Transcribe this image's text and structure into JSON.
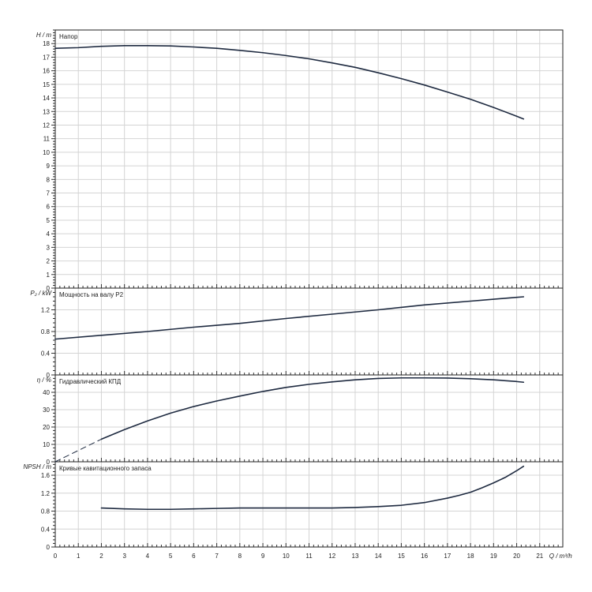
{
  "chart_data": {
    "type": "line",
    "x_axis": {
      "label": "Q / m³/h",
      "range": [
        0,
        22
      ],
      "ticks": [
        0,
        1,
        2,
        3,
        4,
        5,
        6,
        7,
        8,
        9,
        10,
        11,
        12,
        13,
        14,
        15,
        16,
        17,
        18,
        19,
        20,
        21
      ]
    },
    "grid": true,
    "panels": [
      {
        "id": "head",
        "ylabel": "H / m",
        "title": "Напор",
        "ylim": [
          0,
          19
        ],
        "yticks": [
          0,
          1,
          2,
          3,
          4,
          5,
          6,
          7,
          8,
          9,
          10,
          11,
          12,
          13,
          14,
          15,
          16,
          17,
          18
        ],
        "ytick_labels": [
          "0",
          "1",
          "2",
          "3",
          "4",
          "5",
          "6",
          "7",
          "8",
          "9",
          "10",
          "11",
          "12",
          "13",
          "14",
          "15",
          "16",
          "17",
          "18"
        ],
        "series": [
          {
            "x": [
              0,
              1,
              2,
              3,
              4,
              5,
              6,
              7,
              8,
              9,
              10,
              11,
              12,
              13,
              14,
              15,
              16,
              17,
              18,
              19,
              20,
              20.3
            ],
            "y": [
              17.65,
              17.7,
              17.8,
              17.85,
              17.85,
              17.83,
              17.75,
              17.65,
              17.5,
              17.33,
              17.12,
              16.88,
              16.58,
              16.25,
              15.85,
              15.42,
              14.95,
              14.43,
              13.9,
              13.3,
              12.65,
              12.45
            ]
          }
        ]
      },
      {
        "id": "power",
        "ylabel": "P₂ / kW",
        "title": "Мощность на валу P2",
        "ylim": [
          0,
          1.6
        ],
        "yticks": [
          0,
          0.4,
          0.8,
          1.2
        ],
        "ytick_labels": [
          "0",
          "0.4",
          "0.8",
          "1.2"
        ],
        "series": [
          {
            "x": [
              0,
              2,
              4,
              6,
              8,
              10,
              12,
              14,
              16,
              18,
              20,
              20.3
            ],
            "y": [
              0.66,
              0.73,
              0.8,
              0.88,
              0.95,
              1.04,
              1.12,
              1.2,
              1.29,
              1.36,
              1.43,
              1.44
            ]
          }
        ]
      },
      {
        "id": "efficiency",
        "ylabel": "η / %",
        "title": "Гидравлический КПД",
        "ylim": [
          0,
          50
        ],
        "yticks": [
          0,
          10,
          20,
          30,
          40
        ],
        "ytick_labels": [
          "0",
          "10",
          "20",
          "30",
          "40"
        ],
        "series": [
          {
            "dashed": true,
            "x": [
              0,
              2
            ],
            "y": [
              0,
              13
            ]
          },
          {
            "x": [
              2,
              3,
              4,
              5,
              6,
              7,
              8,
              9,
              10,
              11,
              12,
              13,
              14,
              15,
              16,
              17,
              18,
              19,
              20,
              20.3
            ],
            "y": [
              13,
              18.5,
              23.5,
              28,
              31.8,
              35,
              37.8,
              40.5,
              42.8,
              44.6,
              46,
              47.2,
              48,
              48.3,
              48.3,
              48.2,
              47.8,
              47.2,
              46.2,
              45.8
            ]
          }
        ]
      },
      {
        "id": "npsh",
        "ylabel": "NPSH / m",
        "title": "Кривые кавитационного запаса",
        "ylim": [
          0,
          1.9
        ],
        "yticks": [
          0,
          0.4,
          0.8,
          1.2,
          1.6
        ],
        "ytick_labels": [
          "0",
          "0.4",
          "0.8",
          "1.2",
          "1.6"
        ],
        "series": [
          {
            "x": [
              2,
              3,
              4,
              5,
              6,
              7,
              8,
              9,
              10,
              11,
              12,
              13,
              14,
              15,
              16,
              17,
              17.5,
              18,
              18.5,
              19,
              19.5,
              20,
              20.3
            ],
            "y": [
              0.87,
              0.85,
              0.84,
              0.84,
              0.85,
              0.86,
              0.87,
              0.87,
              0.87,
              0.87,
              0.87,
              0.88,
              0.9,
              0.93,
              0.99,
              1.09,
              1.15,
              1.22,
              1.32,
              1.43,
              1.55,
              1.7,
              1.8
            ]
          }
        ]
      }
    ]
  }
}
